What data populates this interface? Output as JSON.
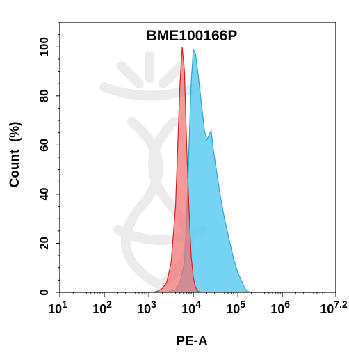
{
  "chart_data": {
    "type": "area",
    "title": "BME100166P",
    "xlabel": "PE-A",
    "ylabel": "Count  (%)",
    "x_scale": "log10",
    "xlim": [
      10,
      15848931.9
    ],
    "ylim": [
      0,
      110
    ],
    "y_ticks": [
      0,
      20,
      40,
      60,
      80,
      100
    ],
    "x_ticks": [
      {
        "value": 10,
        "base": "10",
        "exp": "1"
      },
      {
        "value": 100,
        "base": "10",
        "exp": "2"
      },
      {
        "value": 1000,
        "base": "10",
        "exp": "3"
      },
      {
        "value": 10000,
        "base": "10",
        "exp": "4"
      },
      {
        "value": 100000,
        "base": "10",
        "exp": "5"
      },
      {
        "value": 1000000,
        "base": "10",
        "exp": "6"
      },
      {
        "value": 15848931.9,
        "base": "10",
        "exp": "7.2"
      }
    ],
    "grid": false,
    "legend": "none",
    "series": [
      {
        "color_fill": "#5ecbef",
        "color_line": "#2aa4d6",
        "points": [
          [
            2512,
            0
          ],
          [
            3981,
            1
          ],
          [
            5012,
            4
          ],
          [
            6310,
            12
          ],
          [
            7079,
            30
          ],
          [
            7943,
            58
          ],
          [
            8913,
            85
          ],
          [
            10000,
            99
          ],
          [
            11220,
            97
          ],
          [
            12589,
            90
          ],
          [
            14125,
            82
          ],
          [
            15849,
            74
          ],
          [
            17783,
            66
          ],
          [
            19953,
            62
          ],
          [
            22387,
            64
          ],
          [
            25119,
            66
          ],
          [
            28184,
            58
          ],
          [
            31623,
            52
          ],
          [
            39811,
            40
          ],
          [
            50119,
            30
          ],
          [
            63096,
            22
          ],
          [
            79433,
            14
          ],
          [
            100000,
            8
          ],
          [
            125893,
            4
          ],
          [
            141254,
            2
          ],
          [
            158489,
            0.5
          ],
          [
            199526,
            0
          ]
        ]
      },
      {
        "color_fill": "#f07070",
        "color_line": "#d81f26",
        "points": [
          [
            1259,
            0
          ],
          [
            1585,
            0.5
          ],
          [
            1995,
            1.5
          ],
          [
            2512,
            4
          ],
          [
            3162,
            12
          ],
          [
            3981,
            35
          ],
          [
            4467,
            60
          ],
          [
            5012,
            85
          ],
          [
            5623,
            100
          ],
          [
            6310,
            90
          ],
          [
            7079,
            60
          ],
          [
            7943,
            35
          ],
          [
            8913,
            15
          ],
          [
            10000,
            6
          ],
          [
            11220,
            2
          ],
          [
            12589,
            0.5
          ],
          [
            14125,
            0
          ]
        ]
      }
    ]
  }
}
